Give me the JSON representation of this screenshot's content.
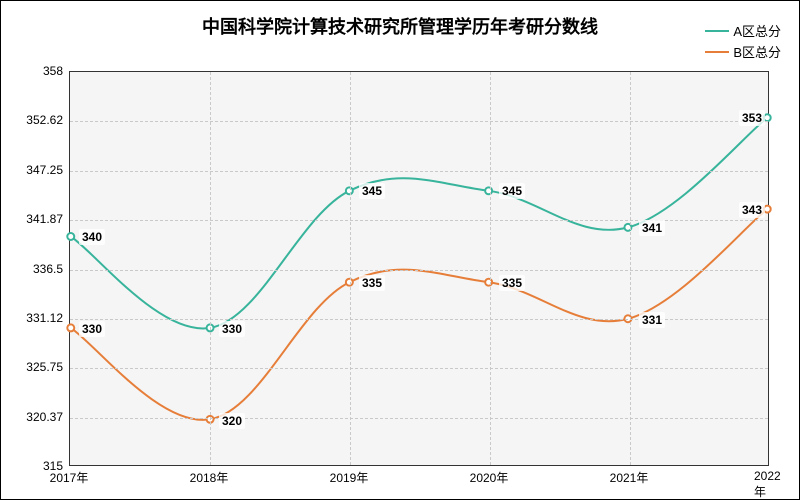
{
  "chart": {
    "type": "line",
    "title": "中国科学院计算技术研究所管理学历年考研分数线",
    "title_fontsize": 18,
    "background_color": "#ffffff",
    "plot_background": "#f5f5f5",
    "grid_color": "#c9c9c9",
    "axis_color": "#333333",
    "x": {
      "categories": [
        "2017年",
        "2018年",
        "2019年",
        "2020年",
        "2021年",
        "2022年"
      ],
      "label_fontsize": 12
    },
    "y": {
      "min": 315,
      "max": 358,
      "ticks": [
        315,
        320.37,
        325.75,
        331.12,
        336.5,
        341.87,
        347.25,
        352.62,
        358
      ],
      "label_fontsize": 12
    },
    "series": [
      {
        "name": "A区总分",
        "color": "#37b49b",
        "line_width": 2,
        "marker_radius": 3.5,
        "marker_fill": "#ffffff",
        "values": [
          340,
          330,
          345,
          345,
          341,
          353
        ]
      },
      {
        "name": "B区总分",
        "color": "#e67e39",
        "line_width": 2,
        "marker_radius": 3.5,
        "marker_fill": "#ffffff",
        "values": [
          330,
          320,
          335,
          335,
          331,
          343
        ]
      }
    ],
    "legend": {
      "position": "top-right",
      "fontsize": 13
    }
  }
}
